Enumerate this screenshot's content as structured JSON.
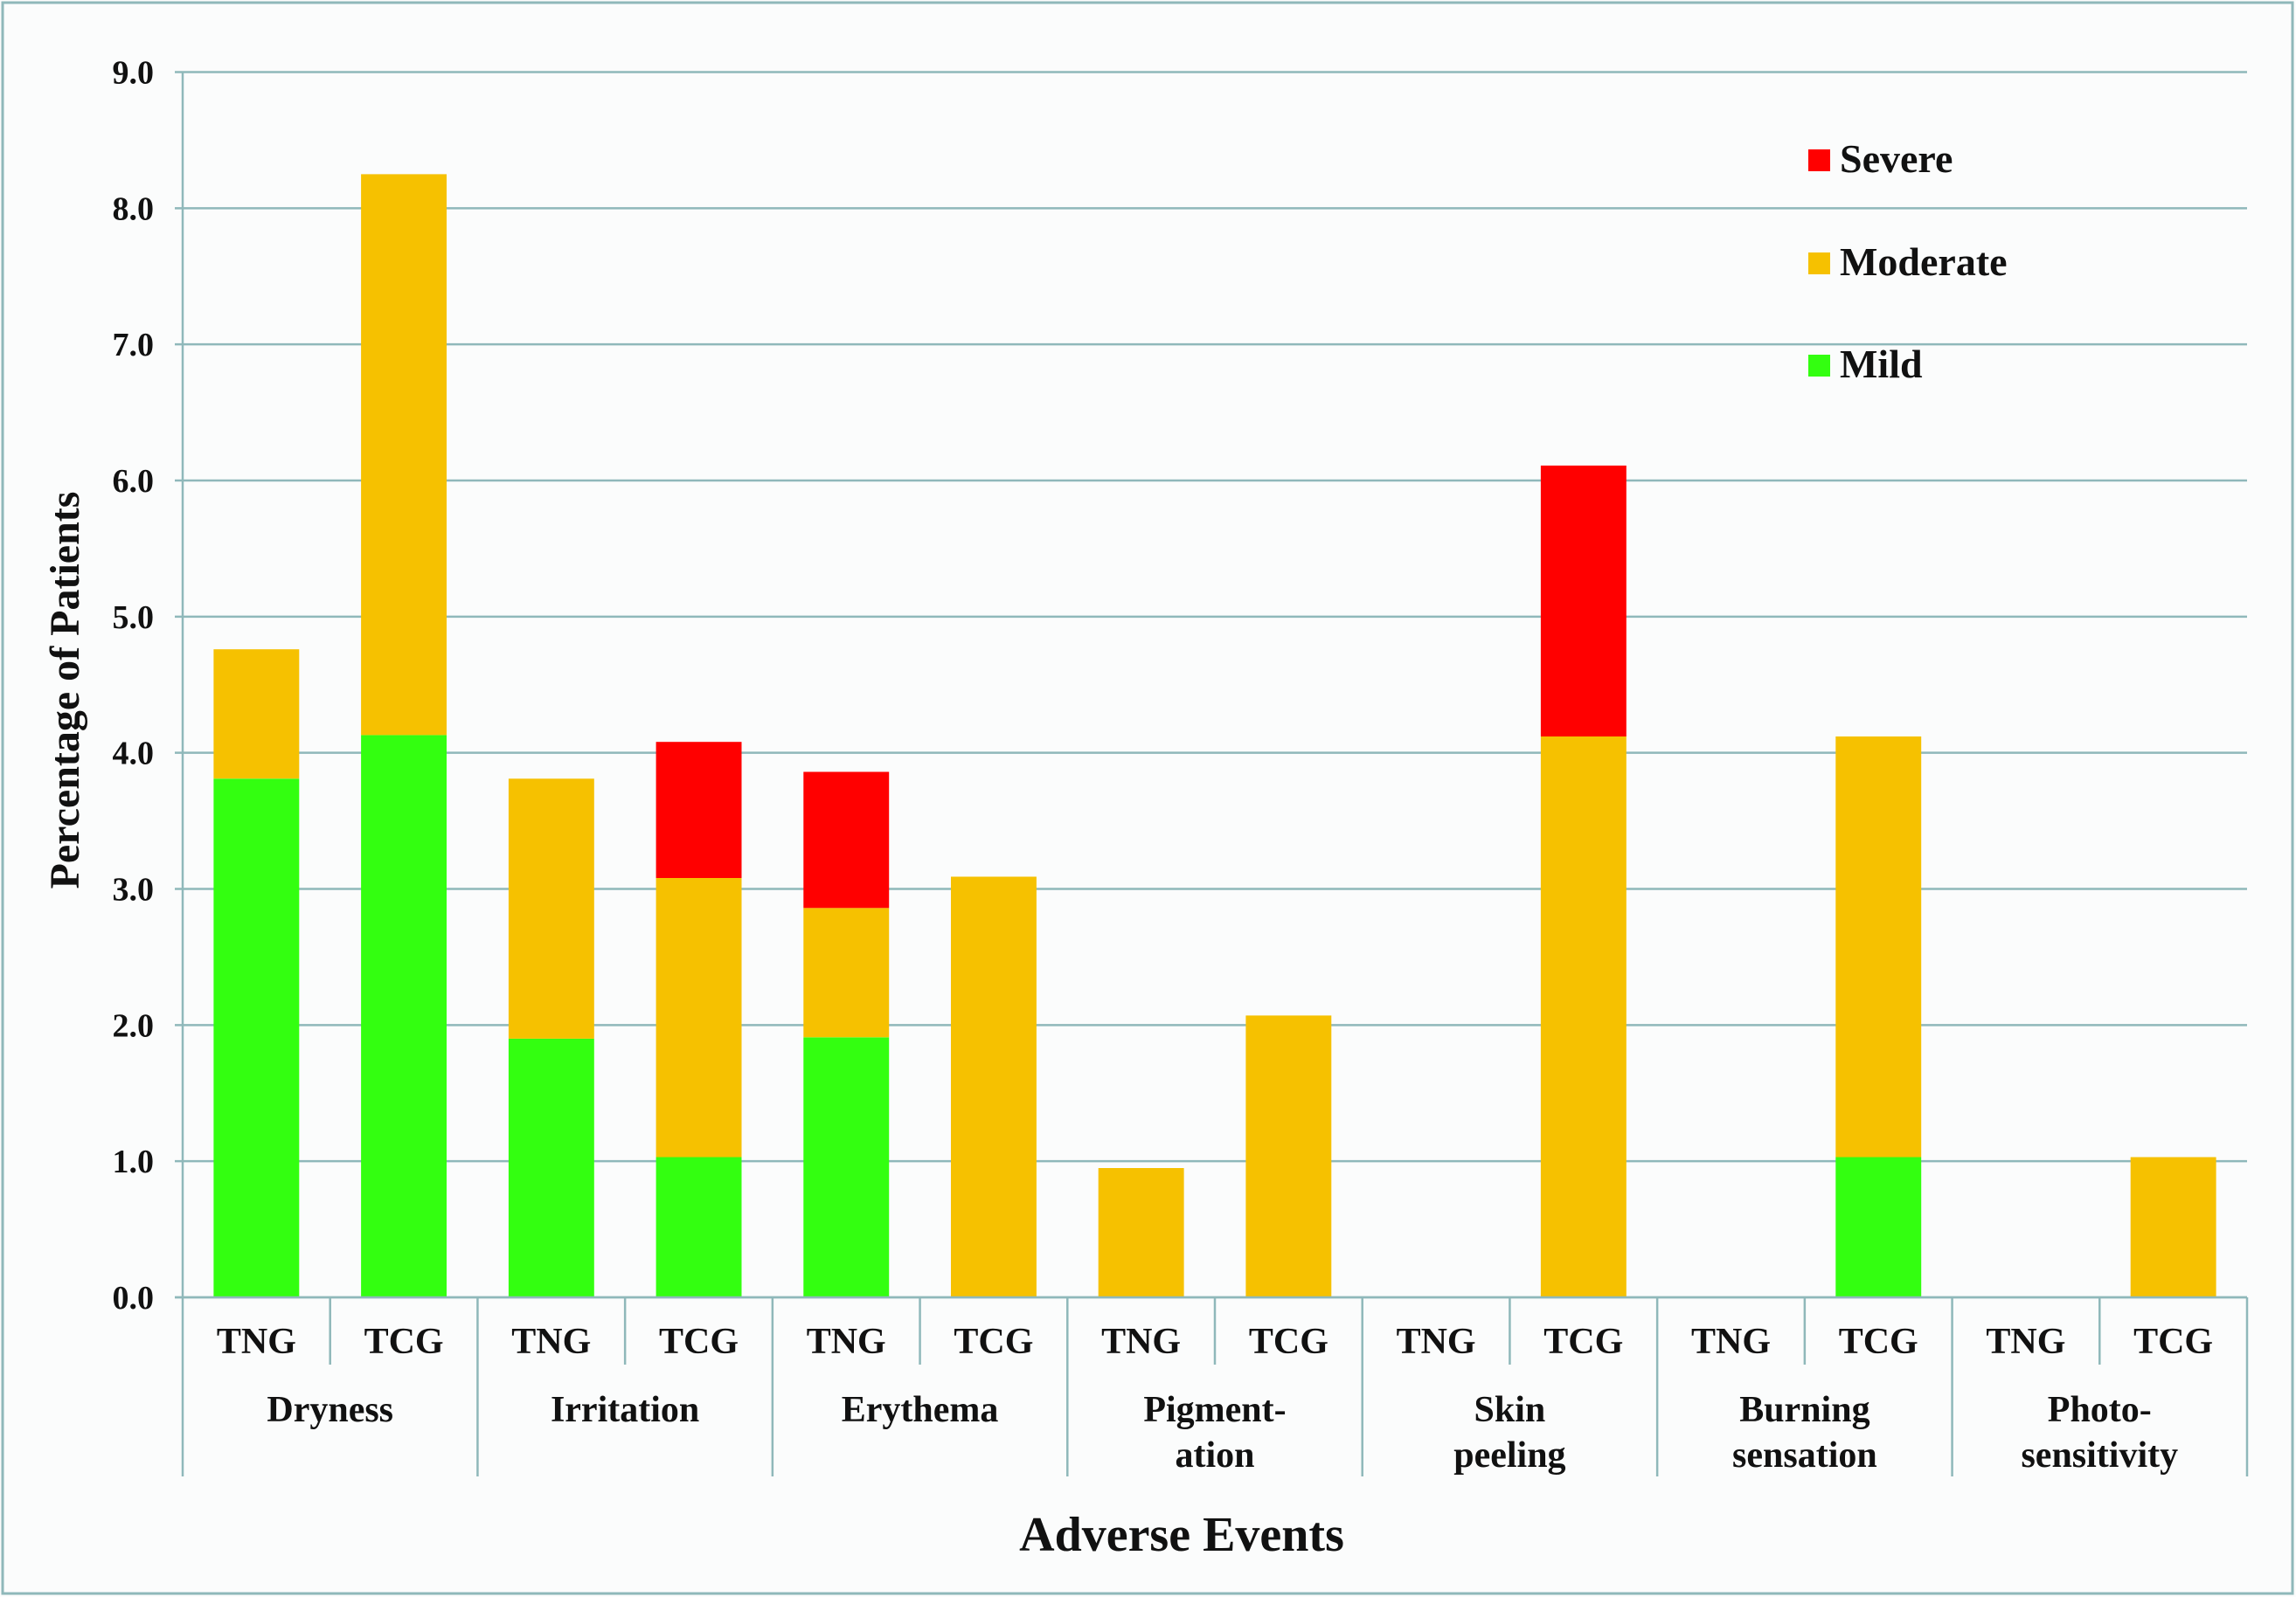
{
  "chart_data": {
    "type": "bar",
    "stacked": true,
    "title": "",
    "xlabel": "Adverse Events",
    "ylabel": "Percentage of Patients",
    "ylim": [
      0,
      9
    ],
    "yticks": [
      "0.0",
      "1.0",
      "2.0",
      "3.0",
      "4.0",
      "5.0",
      "6.0",
      "7.0",
      "8.0",
      "9.0"
    ],
    "grid": true,
    "legend_position": "top-right",
    "groups": [
      {
        "label_lines": [
          "Dryness"
        ]
      },
      {
        "label_lines": [
          "Irritation"
        ]
      },
      {
        "label_lines": [
          "Erythema"
        ]
      },
      {
        "label_lines": [
          "Pigment-",
          "ation"
        ]
      },
      {
        "label_lines": [
          "Skin",
          "peeling"
        ]
      },
      {
        "label_lines": [
          "Burning",
          "sensation"
        ]
      },
      {
        "label_lines": [
          "Photo-",
          "sensitivity"
        ]
      }
    ],
    "subcategories": [
      "TNG",
      "TCG"
    ],
    "series": [
      {
        "name": "Mild",
        "color": "#33ff10",
        "values": [
          [
            3.81,
            4.13
          ],
          [
            1.9,
            1.03
          ],
          [
            1.91,
            0
          ],
          [
            0,
            0
          ],
          [
            0,
            0
          ],
          [
            0,
            1.03
          ],
          [
            0,
            0
          ]
        ]
      },
      {
        "name": "Moderate",
        "color": "#f6c100",
        "values": [
          [
            0.95,
            4.12
          ],
          [
            1.91,
            2.05
          ],
          [
            0.95,
            3.09
          ],
          [
            0.95,
            2.07
          ],
          [
            0,
            4.12
          ],
          [
            0,
            3.09
          ],
          [
            0,
            1.03
          ]
        ]
      },
      {
        "name": "Severe",
        "color": "#ff0000",
        "values": [
          [
            0,
            0
          ],
          [
            0,
            1.0
          ],
          [
            1.0,
            0
          ],
          [
            0,
            0
          ],
          [
            0,
            1.99
          ],
          [
            0,
            0
          ],
          [
            0,
            0
          ]
        ]
      }
    ],
    "legend": [
      "Severe",
      "Moderate",
      "Mild"
    ]
  }
}
